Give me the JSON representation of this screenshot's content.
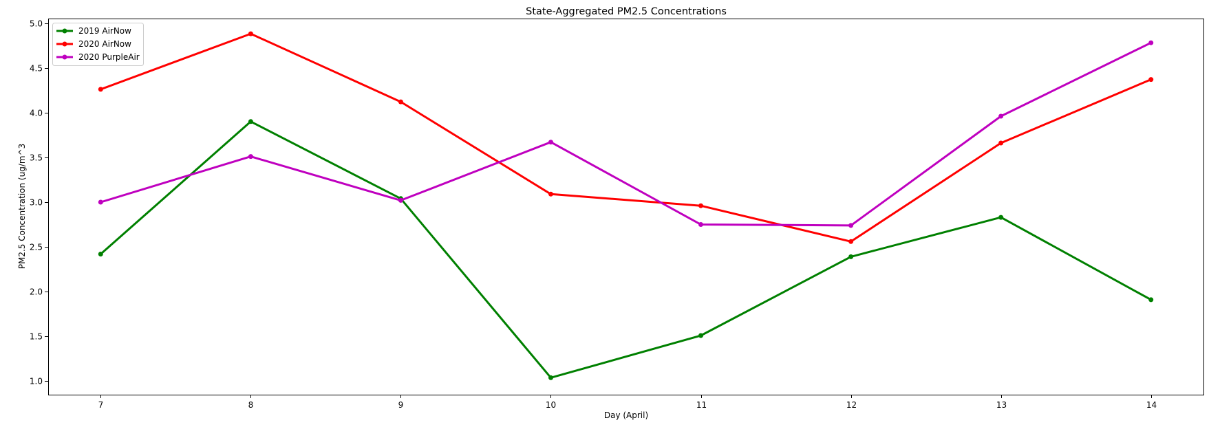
{
  "chart_data": {
    "type": "line",
    "title": "State-Aggregated PM2.5 Concentrations",
    "xlabel": "Day (April)",
    "ylabel": "PM2.5 Concentration (ug/m^3",
    "x": [
      7,
      8,
      9,
      10,
      11,
      12,
      13,
      14
    ],
    "xlim": [
      6.65,
      14.35
    ],
    "ylim": [
      0.85,
      5.05
    ],
    "yticks": [
      "1.0",
      "1.5",
      "2.0",
      "2.5",
      "3.0",
      "3.5",
      "4.0",
      "4.5",
      "5.0"
    ],
    "xticks": [
      "7",
      "8",
      "9",
      "10",
      "11",
      "12",
      "13",
      "14"
    ],
    "grid": false,
    "legend_position": "upper-left",
    "series": [
      {
        "name": "2019 AirNow",
        "color": "#008000",
        "values": [
          2.42,
          3.9,
          3.04,
          1.04,
          1.51,
          2.39,
          2.83,
          1.91
        ]
      },
      {
        "name": "2020 AirNow",
        "color": "#ff0000",
        "values": [
          4.26,
          4.88,
          4.12,
          3.09,
          2.96,
          2.56,
          3.66,
          4.37
        ]
      },
      {
        "name": "2020 PurpleAir",
        "color": "#bf00bf",
        "values": [
          3.0,
          3.51,
          3.02,
          3.67,
          2.75,
          2.74,
          3.96,
          4.78
        ]
      }
    ]
  }
}
